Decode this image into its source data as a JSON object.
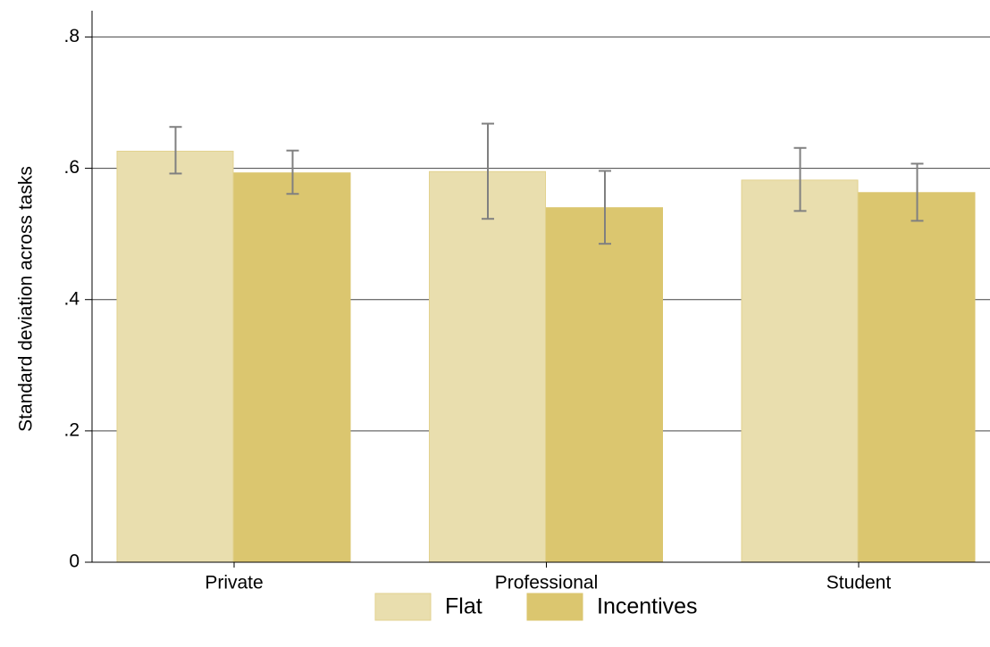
{
  "chart_data": {
    "type": "bar",
    "y_label": "Standard deviation across tasks",
    "categories": [
      "Private",
      "Professional",
      "Student"
    ],
    "series": [
      {
        "name": "Flat",
        "color": "#e9deae",
        "values": [
          0.626,
          0.595,
          0.582
        ],
        "ci_low": [
          0.592,
          0.523,
          0.535
        ],
        "ci_high": [
          0.663,
          0.668,
          0.631
        ]
      },
      {
        "name": "Incentives",
        "color": "#dbc66f",
        "values": [
          0.593,
          0.54,
          0.563
        ],
        "ci_low": [
          0.561,
          0.485,
          0.52
        ],
        "ci_high": [
          0.627,
          0.596,
          0.607
        ]
      }
    ],
    "ylim": [
      0,
      0.84
    ],
    "yticks": [
      0,
      {
        "value": 0.2,
        "label": ".2"
      },
      {
        "value": 0.4,
        "label": ".4"
      },
      {
        "value": 0.6,
        "label": ".6"
      },
      {
        "value": 0.8,
        "label": ".8"
      }
    ],
    "grid": true,
    "error_color": "#808080"
  }
}
